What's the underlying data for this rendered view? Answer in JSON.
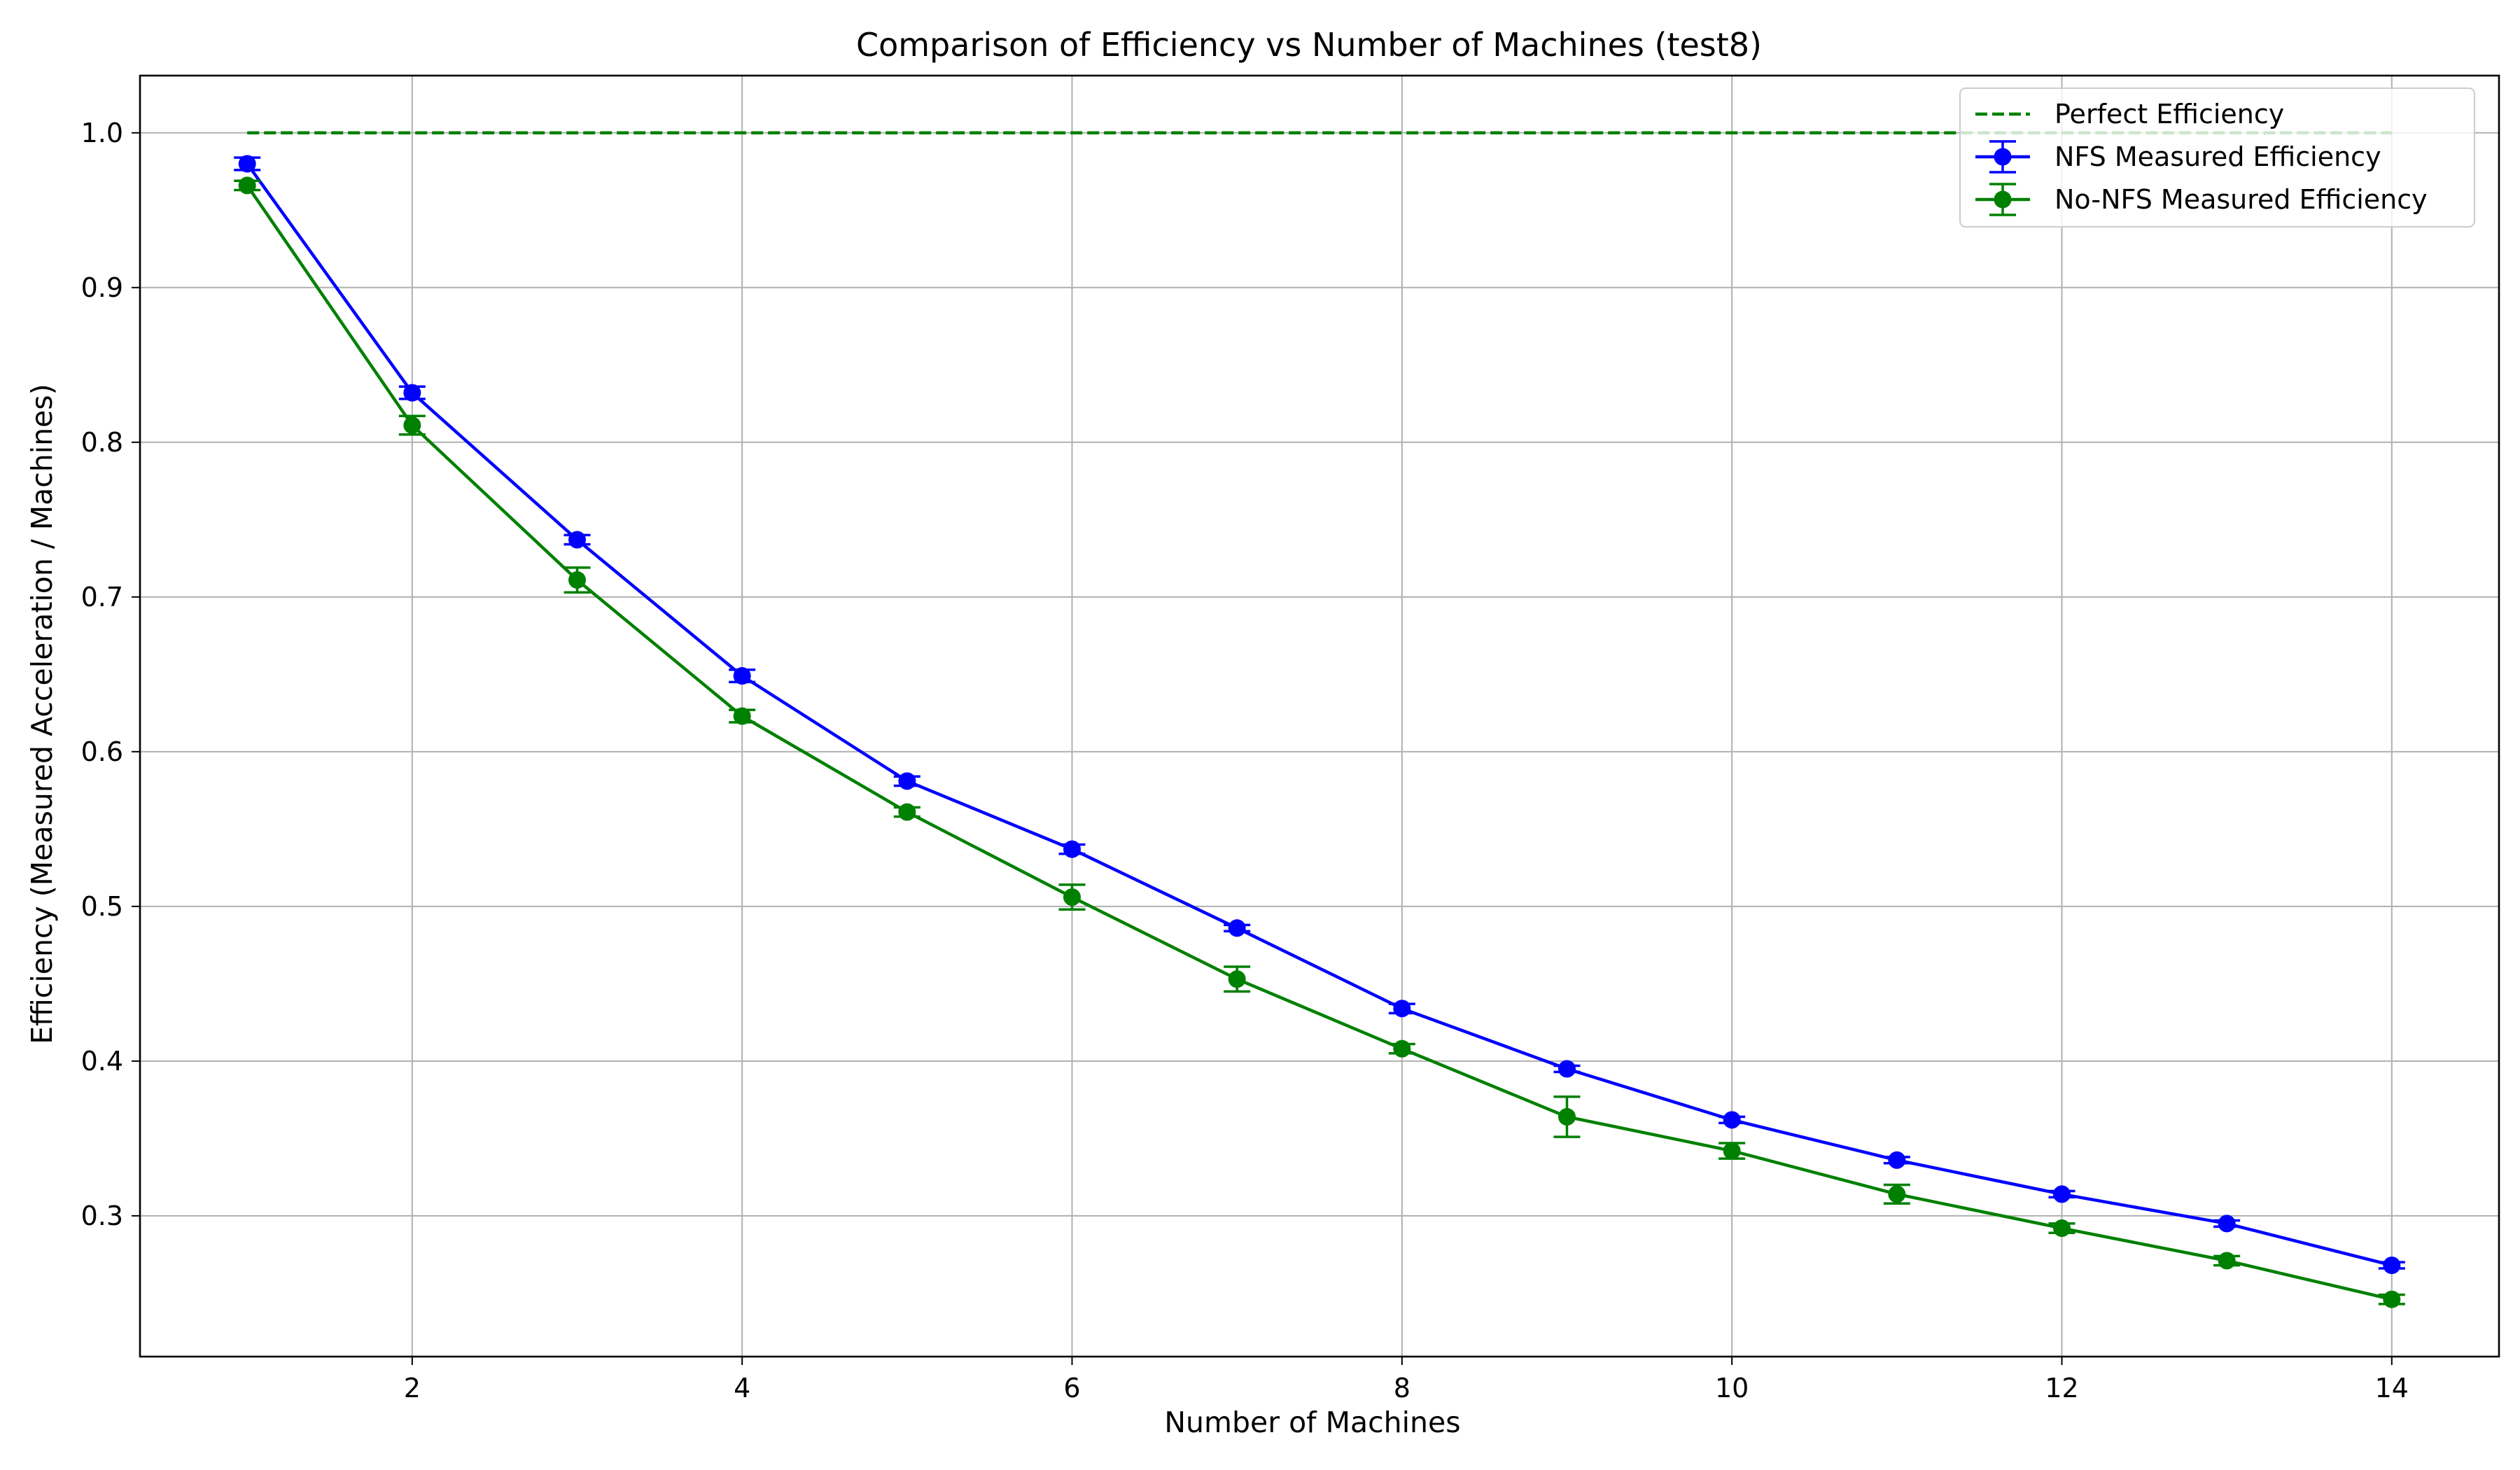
{
  "chart_data": {
    "type": "line",
    "title": "Comparison of Efficiency vs Number of Machines (test8)",
    "xlabel": "Number of Machines",
    "ylabel": "Efficiency (Measured Acceleration / Machines)",
    "xlim": [
      0.35,
      14.65
    ],
    "ylim": [
      0.209,
      1.037
    ],
    "xticks": [
      2,
      4,
      6,
      8,
      10,
      12,
      14
    ],
    "yticks": [
      0.3,
      0.4,
      0.5,
      0.6,
      0.7,
      0.8,
      0.9,
      1.0
    ],
    "xtick_labels": [
      "2",
      "4",
      "6",
      "8",
      "10",
      "12",
      "14"
    ],
    "ytick_labels": [
      "0.3",
      "0.4",
      "0.5",
      "0.6",
      "0.7",
      "0.8",
      "0.9",
      "1.0"
    ],
    "grid": true,
    "legend_position": "top-right",
    "x": [
      1,
      2,
      3,
      4,
      5,
      6,
      7,
      8,
      9,
      10,
      11,
      12,
      13,
      14
    ],
    "series": [
      {
        "name": "Perfect Efficiency",
        "style": "dashed",
        "color": "#008000",
        "values": [
          1.0,
          1.0,
          1.0,
          1.0,
          1.0,
          1.0,
          1.0,
          1.0,
          1.0,
          1.0,
          1.0,
          1.0,
          1.0,
          1.0
        ]
      },
      {
        "name": "NFS Measured Efficiency",
        "style": "solid-errorbar",
        "color": "#0000ff",
        "values": [
          0.98,
          0.832,
          0.737,
          0.649,
          0.581,
          0.537,
          0.486,
          0.434,
          0.395,
          0.362,
          0.336,
          0.314,
          0.295,
          0.268
        ],
        "errors": [
          0.004,
          0.004,
          0.003,
          0.004,
          0.003,
          0.003,
          0.002,
          0.003,
          0.002,
          0.002,
          0.002,
          0.002,
          0.002,
          0.002
        ]
      },
      {
        "name": "No-NFS Measured Efficiency",
        "style": "solid-errorbar",
        "color": "#008000",
        "values": [
          0.966,
          0.811,
          0.711,
          0.623,
          0.561,
          0.506,
          0.453,
          0.408,
          0.364,
          0.342,
          0.314,
          0.292,
          0.271,
          0.246
        ],
        "errors": [
          0.003,
          0.006,
          0.008,
          0.004,
          0.003,
          0.008,
          0.008,
          0.003,
          0.013,
          0.005,
          0.006,
          0.003,
          0.003,
          0.003
        ]
      }
    ]
  }
}
